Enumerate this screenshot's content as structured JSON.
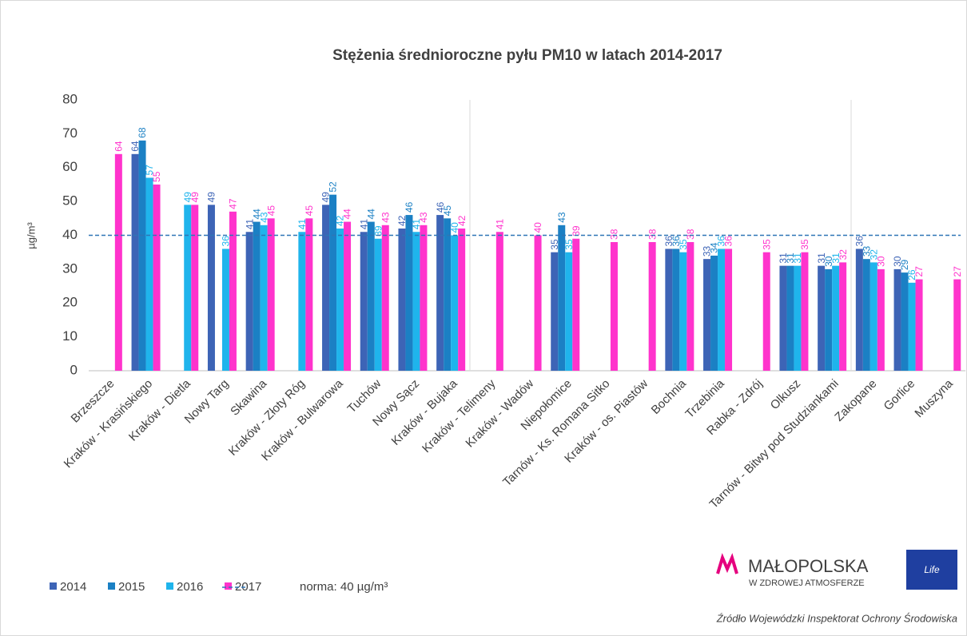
{
  "chart_data": {
    "type": "bar",
    "title": "Stężenia średnioroczne pyłu PM10 w latach 2014-2017",
    "y_label": "µg/m³",
    "categories": [
      "Brzeszcze",
      "Kraków - Krasińskiego",
      "Kraków - Dietla",
      "Nowy Targ",
      "Skawina",
      "Kraków - Złoty Róg",
      "Kraków - Bulwarowa",
      "Tuchów",
      "Nowy Sącz",
      "Kraków - Bujaka",
      "Kraków - Telimeny",
      "Kraków - Wadów",
      "Niepołomice",
      "Tarnów - Ks. Romana Sitko",
      "Kraków - os. Piastów",
      "Bochnia",
      "Trzebinia",
      "Rabka - Zdrój",
      "Olkusz",
      "Tarnów - Bitwy pod Studziankami",
      "Zakopane",
      "Gorlice",
      "Muszyna"
    ],
    "series": [
      {
        "name": "2014",
        "color": "#3d64b6",
        "values": [
          null,
          64,
          null,
          49,
          41,
          null,
          49,
          41,
          42,
          46,
          null,
          null,
          35,
          null,
          null,
          36,
          33,
          null,
          31,
          31,
          36,
          30,
          null
        ]
      },
      {
        "name": "2015",
        "color": "#1b80c4",
        "values": [
          null,
          68,
          null,
          null,
          44,
          null,
          52,
          44,
          46,
          45,
          null,
          null,
          43,
          null,
          null,
          36,
          34,
          null,
          31,
          30,
          33,
          29,
          null
        ]
      },
      {
        "name": "2016",
        "color": "#1fb4ec",
        "values": [
          null,
          57,
          49,
          36,
          43,
          41,
          42,
          39,
          41,
          40,
          null,
          null,
          35,
          null,
          null,
          35,
          36,
          null,
          31,
          31,
          32,
          26,
          null
        ]
      },
      {
        "name": "2017",
        "color": "#ff33cc",
        "values": [
          64,
          55,
          49,
          47,
          45,
          45,
          44,
          43,
          43,
          42,
          41,
          40,
          39,
          38,
          38,
          38,
          36,
          35,
          35,
          32,
          30,
          27,
          27
        ]
      }
    ],
    "norm": 40,
    "norm_label": "norma: 40 µg/m³",
    "norm_color": "#2e75b6",
    "ylim": [
      0,
      80
    ],
    "yticks": [
      0,
      10,
      20,
      30,
      40,
      50,
      60,
      70,
      80
    ],
    "logo": "MAŁOPOLSKA",
    "logo_sub": "W ZDROWEJ ATMOSFERZE",
    "flag_text": "Life",
    "source": "Źródło Wojewódzki Inspektorat Ochrony Środowiska"
  }
}
